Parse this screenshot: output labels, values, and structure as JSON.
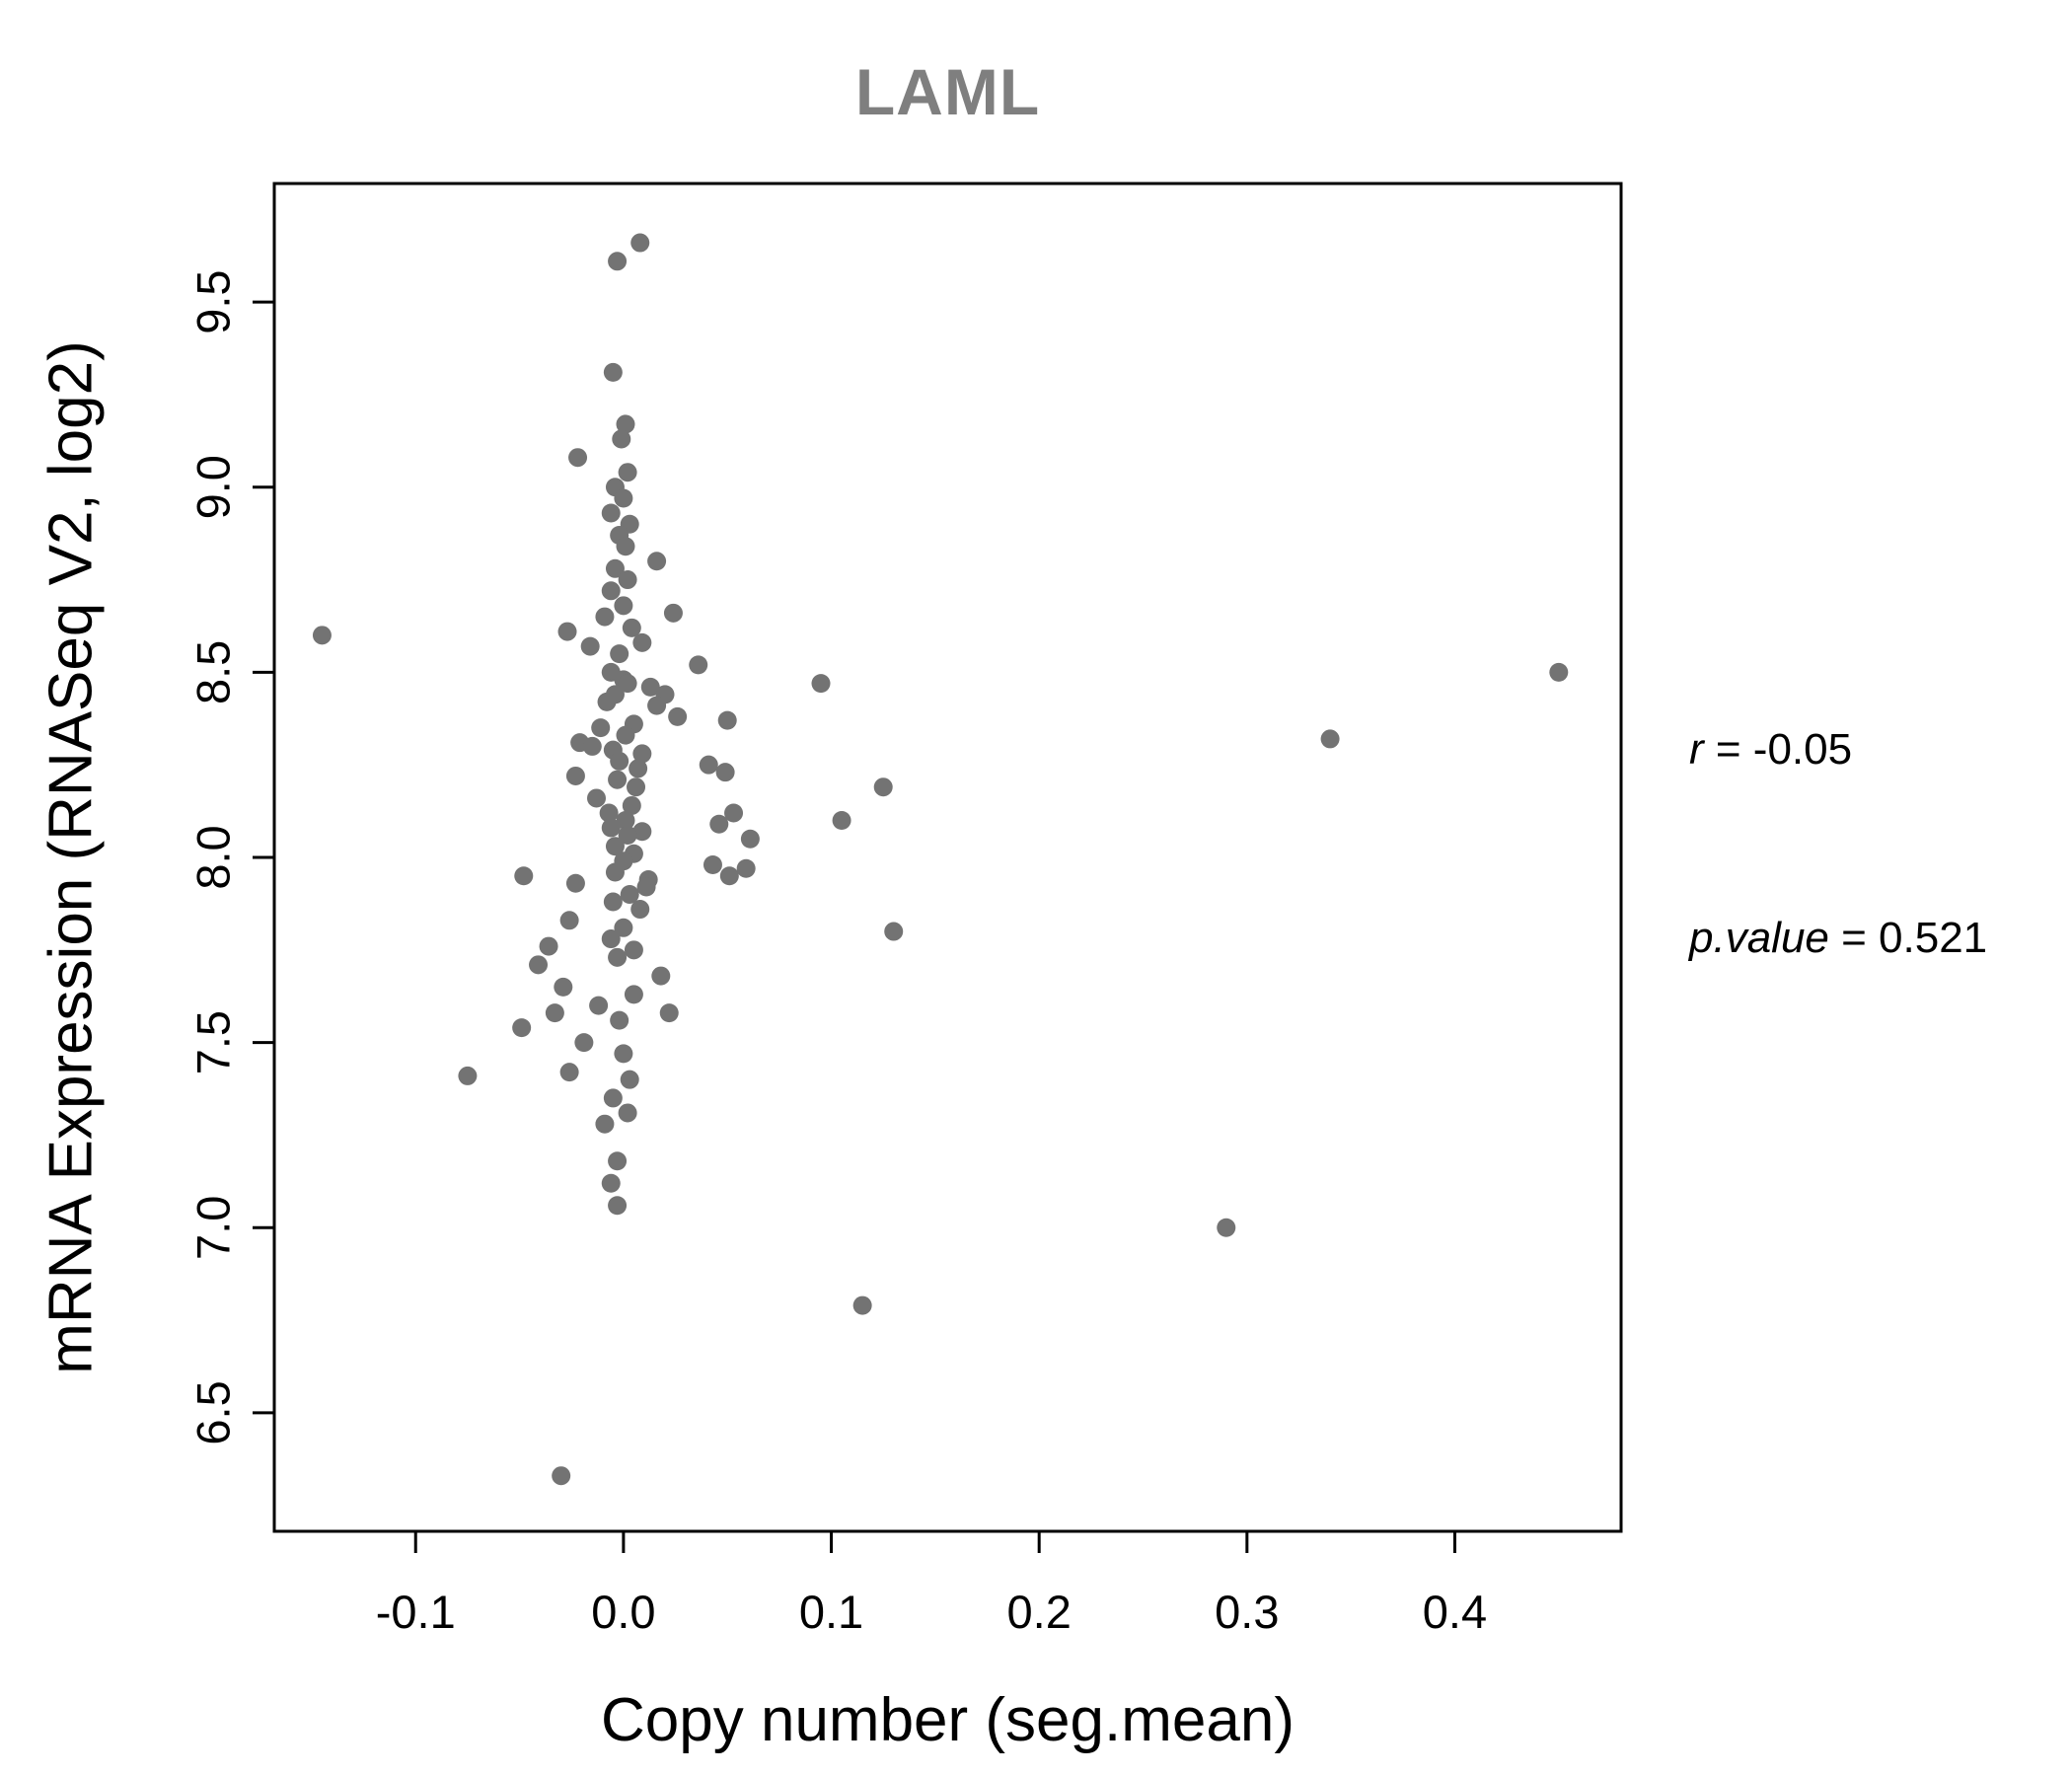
{
  "annotation": {
    "line1_var": "r",
    "line1_rest": " = -0.05",
    "line2_var": "p.value",
    "line2_rest": " = 0.521"
  },
  "chart_data": {
    "type": "scatter",
    "title": "LAML",
    "xlabel": "Copy number (seg.mean)",
    "ylabel": "mRNA Expression (RNASeq V2, log2)",
    "xlim": [
      -0.168,
      0.48
    ],
    "ylim": [
      6.18,
      9.82
    ],
    "x_ticks": [
      -0.1,
      0.0,
      0.1,
      0.2,
      0.3,
      0.4
    ],
    "y_ticks": [
      6.5,
      7.0,
      7.5,
      8.0,
      8.5,
      9.0,
      9.5
    ],
    "grid": false,
    "point_color": "#737373",
    "title_color": "#7f7f7f",
    "stats": {
      "r": -0.05,
      "p_value": 0.521
    },
    "points": [
      [
        0.008,
        9.66
      ],
      [
        -0.003,
        9.61
      ],
      [
        -0.005,
        9.31
      ],
      [
        0.001,
        9.17
      ],
      [
        -0.001,
        9.13
      ],
      [
        -0.022,
        9.08
      ],
      [
        0.002,
        9.04
      ],
      [
        -0.004,
        9.0
      ],
      [
        0.0,
        8.97
      ],
      [
        -0.006,
        8.93
      ],
      [
        0.003,
        8.9
      ],
      [
        -0.002,
        8.87
      ],
      [
        0.001,
        8.84
      ],
      [
        0.016,
        8.8
      ],
      [
        -0.004,
        8.78
      ],
      [
        0.002,
        8.75
      ],
      [
        -0.006,
        8.72
      ],
      [
        0.0,
        8.68
      ],
      [
        0.024,
        8.66
      ],
      [
        -0.009,
        8.65
      ],
      [
        0.004,
        8.62
      ],
      [
        -0.027,
        8.61
      ],
      [
        -0.145,
        8.6
      ],
      [
        0.009,
        8.58
      ],
      [
        -0.016,
        8.57
      ],
      [
        -0.002,
        8.55
      ],
      [
        0.036,
        8.52
      ],
      [
        -0.006,
        8.5
      ],
      [
        0.45,
        8.5
      ],
      [
        0.0,
        8.48
      ],
      [
        0.095,
        8.47
      ],
      [
        0.002,
        8.47
      ],
      [
        0.013,
        8.46
      ],
      [
        0.02,
        8.44
      ],
      [
        -0.004,
        8.44
      ],
      [
        -0.008,
        8.42
      ],
      [
        0.016,
        8.41
      ],
      [
        0.026,
        8.38
      ],
      [
        0.05,
        8.37
      ],
      [
        0.005,
        8.36
      ],
      [
        -0.011,
        8.35
      ],
      [
        0.001,
        8.33
      ],
      [
        0.34,
        8.32
      ],
      [
        -0.021,
        8.31
      ],
      [
        -0.015,
        8.3
      ],
      [
        -0.005,
        8.29
      ],
      [
        0.009,
        8.28
      ],
      [
        -0.002,
        8.26
      ],
      [
        0.041,
        8.25
      ],
      [
        0.007,
        8.24
      ],
      [
        0.049,
        8.23
      ],
      [
        -0.023,
        8.22
      ],
      [
        -0.003,
        8.21
      ],
      [
        0.006,
        8.19
      ],
      [
        0.125,
        8.19
      ],
      [
        -0.013,
        8.16
      ],
      [
        0.004,
        8.14
      ],
      [
        0.053,
        8.12
      ],
      [
        -0.007,
        8.12
      ],
      [
        0.105,
        8.1
      ],
      [
        0.001,
        8.1
      ],
      [
        0.046,
        8.09
      ],
      [
        -0.006,
        8.08
      ],
      [
        0.009,
        8.07
      ],
      [
        0.002,
        8.06
      ],
      [
        0.061,
        8.05
      ],
      [
        -0.004,
        8.03
      ],
      [
        0.005,
        8.01
      ],
      [
        0.0,
        7.99
      ],
      [
        0.043,
        7.98
      ],
      [
        0.059,
        7.97
      ],
      [
        -0.004,
        7.96
      ],
      [
        0.051,
        7.95
      ],
      [
        -0.048,
        7.95
      ],
      [
        0.012,
        7.94
      ],
      [
        -0.023,
        7.93
      ],
      [
        0.011,
        7.92
      ],
      [
        0.003,
        7.9
      ],
      [
        -0.005,
        7.88
      ],
      [
        0.008,
        7.86
      ],
      [
        -0.026,
        7.83
      ],
      [
        0.0,
        7.81
      ],
      [
        0.13,
        7.8
      ],
      [
        -0.006,
        7.78
      ],
      [
        -0.036,
        7.76
      ],
      [
        0.005,
        7.75
      ],
      [
        -0.003,
        7.73
      ],
      [
        -0.041,
        7.71
      ],
      [
        0.018,
        7.68
      ],
      [
        -0.029,
        7.65
      ],
      [
        0.005,
        7.63
      ],
      [
        -0.012,
        7.6
      ],
      [
        -0.033,
        7.58
      ],
      [
        0.022,
        7.58
      ],
      [
        -0.002,
        7.56
      ],
      [
        -0.049,
        7.54
      ],
      [
        -0.019,
        7.5
      ],
      [
        0.0,
        7.47
      ],
      [
        -0.026,
        7.42
      ],
      [
        -0.075,
        7.41
      ],
      [
        0.003,
        7.4
      ],
      [
        -0.005,
        7.35
      ],
      [
        0.002,
        7.31
      ],
      [
        -0.009,
        7.28
      ],
      [
        -0.003,
        7.18
      ],
      [
        -0.006,
        7.12
      ],
      [
        -0.003,
        7.06
      ],
      [
        0.29,
        7.0
      ],
      [
        0.115,
        6.79
      ],
      [
        -0.03,
        6.33
      ]
    ]
  }
}
